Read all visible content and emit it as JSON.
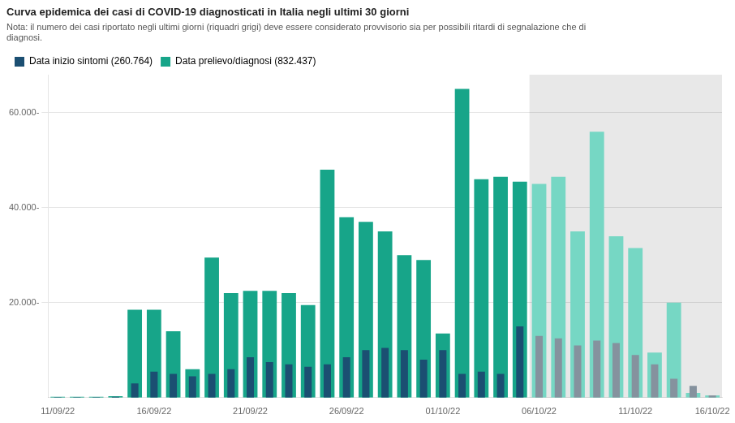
{
  "chart_data": {
    "type": "bar",
    "title": "Curva epidemica dei casi di COVID-19 diagnosticati in Italia negli ultimi 30 giorni",
    "subtitle": "Nota: il numero dei casi riportato negli ultimi giorni (riquadri grigi) deve essere considerato provvisorio sia per possibili ritardi di segnalazione che di\ndiagnosi.",
    "categories": [
      "11/09/22",
      null,
      null,
      null,
      null,
      "16/09/22",
      null,
      null,
      null,
      null,
      "21/09/22",
      null,
      null,
      null,
      null,
      "26/09/22",
      null,
      null,
      null,
      null,
      "01/10/22",
      null,
      null,
      null,
      null,
      "06/10/22",
      null,
      null,
      null,
      null,
      "11/10/22",
      null,
      null,
      null,
      "16/10/22"
    ],
    "series": [
      {
        "name": "Data inizio sintomi (260.764)",
        "color": "#1b4f72",
        "values": [
          100,
          100,
          100,
          200,
          3000,
          5500,
          5000,
          4500,
          5000,
          6000,
          8500,
          7500,
          7000,
          6500,
          7000,
          8500,
          10000,
          10500,
          10000,
          8000,
          10000,
          5000,
          5500,
          5000,
          15000,
          13000,
          12500,
          11000,
          12000,
          11500,
          9000,
          7000,
          4000,
          2500,
          500
        ],
        "colors": [
          "#1b4f72",
          "#1b4f72",
          "#1b4f72",
          "#1b4f72",
          "#1b4f72",
          "#1b4f72",
          "#1b4f72",
          "#1b4f72",
          "#1b4f72",
          "#1b4f72",
          "#1b4f72",
          "#1b4f72",
          "#1b4f72",
          "#1b4f72",
          "#1b4f72",
          "#1b4f72",
          "#1b4f72",
          "#1b4f72",
          "#1b4f72",
          "#1b4f72",
          "#1b4f72",
          "#1b4f72",
          "#1b4f72",
          "#1b4f72",
          "#1b4f72",
          "#85929e",
          "#85929e",
          "#85929e",
          "#85929e",
          "#85929e",
          "#85929e",
          "#85929e",
          "#85929e",
          "#85929e",
          "#85929e"
        ]
      },
      {
        "name": "Data prelievo/diagnosi (832.437)",
        "color": "#17a589",
        "values": [
          200,
          200,
          200,
          300,
          18500,
          18500,
          14000,
          6000,
          29500,
          22000,
          22500,
          22500,
          22000,
          19500,
          48000,
          38000,
          37000,
          35000,
          30000,
          29000,
          13500,
          65000,
          46000,
          46500,
          45500,
          45000,
          46500,
          35000,
          56000,
          34000,
          31500,
          9500,
          20000,
          1000,
          500
        ],
        "colors": [
          "#17a589",
          "#17a589",
          "#17a589",
          "#17a589",
          "#17a589",
          "#17a589",
          "#17a589",
          "#17a589",
          "#17a589",
          "#17a589",
          "#17a589",
          "#17a589",
          "#17a589",
          "#17a589",
          "#17a589",
          "#17a589",
          "#17a589",
          "#17a589",
          "#17a589",
          "#17a589",
          "#17a589",
          "#17a589",
          "#17a589",
          "#17a589",
          "#17a589",
          "#76d7c4",
          "#76d7c4",
          "#76d7c4",
          "#76d7c4",
          "#76d7c4",
          "#76d7c4",
          "#76d7c4",
          "#76d7c4",
          "#76d7c4",
          "#76d7c4"
        ]
      }
    ],
    "shaded_from": "06/10/22",
    "shaded_color": "#e8e8e8",
    "ylim": [
      0,
      68000
    ],
    "yticks": [
      {
        "value": 20000,
        "label": "20.000-"
      },
      {
        "value": 40000,
        "label": "40.000-"
      },
      {
        "value": 60000,
        "label": "60.000-"
      }
    ],
    "grid": true,
    "legend": "top-left"
  }
}
